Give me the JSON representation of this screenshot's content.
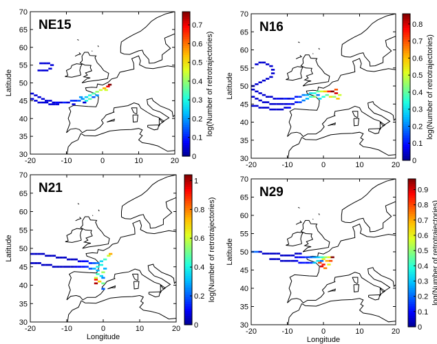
{
  "colormap": [
    "#00008f",
    "#0000ff",
    "#0060ff",
    "#00c0ff",
    "#20ffe0",
    "#80ff80",
    "#e0ff20",
    "#ffc000",
    "#ff6000",
    "#ff0000",
    "#800000"
  ],
  "coast_color": "#000000",
  "chart_data": [
    {
      "type": "heatmap",
      "title": "NE15",
      "xlabel": "",
      "ylabel": "Latitude",
      "colorbar_label": "log(Number of retrotrajectories)",
      "xlim": [
        -20,
        20
      ],
      "ylim": [
        30,
        70
      ],
      "xticks": [
        -20,
        -10,
        0,
        10,
        20
      ],
      "yticks": [
        30,
        35,
        40,
        45,
        50,
        55,
        60,
        65,
        70
      ],
      "clim": [
        0,
        0.77
      ],
      "cticks": [
        0,
        0.1,
        0.2,
        0.3,
        0.4,
        0.5,
        0.6,
        0.7
      ],
      "cells": [
        [
          -17,
          55.5,
          0.05
        ],
        [
          -16,
          55.5,
          0.05
        ],
        [
          -15,
          55.5,
          0.05
        ],
        [
          -14,
          55,
          0.05
        ],
        [
          -14.5,
          54,
          0.05
        ],
        [
          -15.5,
          53.5,
          0.05
        ],
        [
          -16.5,
          53.5,
          0.05
        ],
        [
          -17.5,
          53.5,
          0.05
        ],
        [
          -19.5,
          47,
          0.05
        ],
        [
          -18.5,
          46.5,
          0.05
        ],
        [
          -17.5,
          46,
          0.05
        ],
        [
          -16.5,
          45.5,
          0.05
        ],
        [
          -15.5,
          45,
          0.05
        ],
        [
          -14.5,
          45,
          0.05
        ],
        [
          -13.5,
          44.5,
          0.05
        ],
        [
          -12.5,
          44.5,
          0.08
        ],
        [
          -11.5,
          44.5,
          0.05
        ],
        [
          -10.5,
          44.5,
          0.1
        ],
        [
          -9.5,
          44.5,
          0.05
        ],
        [
          -8.5,
          45,
          0.12
        ],
        [
          -7.5,
          45,
          0.1
        ],
        [
          -6.5,
          45,
          0.15
        ],
        [
          -5.5,
          45.5,
          0.2
        ],
        [
          -4.5,
          46,
          0.25
        ],
        [
          -3.5,
          46.5,
          0.3
        ],
        [
          -2.5,
          47,
          0.35
        ],
        [
          -1.5,
          47.5,
          0.4
        ],
        [
          -0.5,
          48,
          0.45
        ],
        [
          0.5,
          48.5,
          0.55
        ],
        [
          1.5,
          49,
          0.7
        ],
        [
          2,
          49.5,
          0.77
        ],
        [
          -19.5,
          45.5,
          0.05
        ],
        [
          -18.5,
          45,
          0.05
        ],
        [
          -17.5,
          44.5,
          0.05
        ],
        [
          -16.5,
          44.5,
          0.05
        ],
        [
          -15.5,
          44.5,
          0.05
        ],
        [
          -14.5,
          44,
          0.05
        ],
        [
          -13.5,
          44,
          0.05
        ],
        [
          -12.5,
          44,
          0.05
        ],
        [
          -4.5,
          45,
          0.3
        ],
        [
          -3.5,
          45.5,
          0.35
        ],
        [
          -2.5,
          46,
          0.15
        ],
        [
          -1.5,
          46.5,
          0.2
        ],
        [
          1,
          48,
          0.45
        ],
        [
          -6,
          46,
          0.2
        ],
        [
          -8,
          44,
          0.05
        ],
        [
          -5,
          44.5,
          0.05
        ]
      ]
    },
    {
      "type": "heatmap",
      "title": "N16",
      "xlabel": "",
      "ylabel": "Latitude",
      "colorbar_label": "log(Number of retrotrajectories)",
      "xlim": [
        -20,
        20
      ],
      "ylim": [
        30,
        70
      ],
      "xticks": [
        -20,
        -10,
        0,
        10,
        20
      ],
      "yticks": [
        30,
        35,
        40,
        45,
        50,
        55,
        60,
        65,
        70
      ],
      "clim": [
        0,
        0.86
      ],
      "cticks": [
        0,
        0.1,
        0.2,
        0.3,
        0.4,
        0.5,
        0.6,
        0.7,
        0.8
      ],
      "cells": [
        [
          -18.5,
          56,
          0.05
        ],
        [
          -17.5,
          56.5,
          0.05
        ],
        [
          -16.5,
          56.5,
          0.05
        ],
        [
          -15.5,
          56,
          0.05
        ],
        [
          -14.5,
          55.5,
          0.05
        ],
        [
          -14,
          54.5,
          0.05
        ],
        [
          -14,
          53.5,
          0.05
        ],
        [
          -14.5,
          52.5,
          0.05
        ],
        [
          -15.5,
          52,
          0.05
        ],
        [
          -16.5,
          51.5,
          0.05
        ],
        [
          -17.5,
          51,
          0.05
        ],
        [
          -18.5,
          50.5,
          0.05
        ],
        [
          -19.5,
          50,
          0.05
        ],
        [
          -19.5,
          49,
          0.05
        ],
        [
          -18.5,
          48.5,
          0.05
        ],
        [
          -17.5,
          48,
          0.05
        ],
        [
          -16.5,
          47.5,
          0.05
        ],
        [
          -15.5,
          47,
          0.05
        ],
        [
          -14.5,
          47,
          0.05
        ],
        [
          -13.5,
          46.5,
          0.05
        ],
        [
          -12.5,
          46.5,
          0.08
        ],
        [
          -11.5,
          46.5,
          0.05
        ],
        [
          -10.5,
          46.5,
          0.1
        ],
        [
          -9.5,
          46.5,
          0.05
        ],
        [
          -8.5,
          46.5,
          0.12
        ],
        [
          -7.5,
          47,
          0.1
        ],
        [
          -6.5,
          47,
          0.15
        ],
        [
          -5.5,
          47.5,
          0.2
        ],
        [
          -4.5,
          47.5,
          0.25
        ],
        [
          -3.5,
          48,
          0.3
        ],
        [
          -2.5,
          48,
          0.35
        ],
        [
          -1.5,
          48.5,
          0.4
        ],
        [
          -0.5,
          48.5,
          0.5
        ],
        [
          0.5,
          48.5,
          0.6
        ],
        [
          1.5,
          48.5,
          0.75
        ],
        [
          2.5,
          48.5,
          0.86
        ],
        [
          3.5,
          48,
          0.8
        ],
        [
          -19.5,
          47,
          0.05
        ],
        [
          -18.5,
          46.5,
          0.05
        ],
        [
          -17.5,
          46,
          0.05
        ],
        [
          -16.5,
          45.5,
          0.05
        ],
        [
          -15.5,
          45.5,
          0.05
        ],
        [
          -14.5,
          45,
          0.05
        ],
        [
          -13.5,
          45,
          0.05
        ],
        [
          -12.5,
          45,
          0.05
        ],
        [
          -11.5,
          45,
          0.05
        ],
        [
          -10.5,
          45,
          0.05
        ],
        [
          -9.5,
          45,
          0.08
        ],
        [
          -8.5,
          45,
          0.05
        ],
        [
          -7.5,
          45.5,
          0.1
        ],
        [
          -6.5,
          45.5,
          0.15
        ],
        [
          -5.5,
          46,
          0.2
        ],
        [
          -4.5,
          46.5,
          0.25
        ],
        [
          -3.5,
          47,
          0.35
        ],
        [
          -2.5,
          47,
          0.45
        ],
        [
          -1.5,
          47.5,
          0.2
        ],
        [
          -19.5,
          44.5,
          0.05
        ],
        [
          -18.5,
          44.5,
          0.05
        ],
        [
          -17.5,
          44,
          0.05
        ],
        [
          -16.5,
          44,
          0.05
        ],
        [
          -15.5,
          44,
          0.05
        ],
        [
          -14.5,
          43.5,
          0.05
        ],
        [
          -13.5,
          43.5,
          0.05
        ],
        [
          -12.5,
          43.5,
          0.05
        ],
        [
          -11.5,
          43.5,
          0.05
        ],
        [
          -10.5,
          44,
          0.05
        ],
        [
          -9.5,
          44,
          0.08
        ],
        [
          -1,
          46.5,
          0.3
        ],
        [
          0,
          47,
          0.35
        ],
        [
          1,
          47.5,
          0.4
        ],
        [
          2,
          47,
          0.55
        ],
        [
          3,
          47,
          0.45
        ],
        [
          4,
          46.5,
          0.6
        ],
        [
          4.5,
          47.5,
          0.5
        ],
        [
          3.5,
          49,
          0.7
        ]
      ]
    },
    {
      "type": "heatmap",
      "title": "N21",
      "xlabel": "Longitude",
      "ylabel": "Latitude",
      "colorbar_label": "log(Number of retrotrajectories)",
      "xlim": [
        -20,
        20
      ],
      "ylim": [
        30,
        70
      ],
      "xticks": [
        -20,
        -10,
        0,
        10,
        20
      ],
      "yticks": [
        30,
        35,
        40,
        45,
        50,
        55,
        60,
        65,
        70
      ],
      "clim": [
        0,
        1.04
      ],
      "cticks": [
        0,
        0.2,
        0.4,
        0.6,
        0.8,
        1
      ],
      "cells": [
        [
          -19.5,
          48.5,
          0.05
        ],
        [
          -18.5,
          48.5,
          0.05
        ],
        [
          -17.5,
          48.5,
          0.05
        ],
        [
          -16.5,
          48.5,
          0.05
        ],
        [
          -15.5,
          48,
          0.05
        ],
        [
          -14.5,
          48,
          0.05
        ],
        [
          -13.5,
          48,
          0.05
        ],
        [
          -12.5,
          47.5,
          0.05
        ],
        [
          -11.5,
          47.5,
          0.05
        ],
        [
          -10.5,
          47.5,
          0.05
        ],
        [
          -9.5,
          47,
          0.05
        ],
        [
          -8.5,
          47,
          0.05
        ],
        [
          -7.5,
          47,
          0.05
        ],
        [
          -6.5,
          46.5,
          0.08
        ],
        [
          -5.5,
          46.5,
          0.1
        ],
        [
          -4.5,
          46.5,
          0.12
        ],
        [
          -3.5,
          46,
          0.15
        ],
        [
          -2.5,
          46,
          0.2
        ],
        [
          -1.5,
          46,
          0.25
        ],
        [
          -0.5,
          46.5,
          0.35
        ],
        [
          0.5,
          47,
          0.45
        ],
        [
          1.5,
          48,
          0.6
        ],
        [
          2,
          48.5,
          0.75
        ],
        [
          -19.5,
          46,
          0.05
        ],
        [
          -18.5,
          46,
          0.05
        ],
        [
          -17.5,
          46,
          0.05
        ],
        [
          -16.5,
          45.5,
          0.05
        ],
        [
          -15.5,
          45.5,
          0.05
        ],
        [
          -14.5,
          45.5,
          0.05
        ],
        [
          -13.5,
          45,
          0.05
        ],
        [
          -12.5,
          45,
          0.05
        ],
        [
          -11.5,
          45,
          0.05
        ],
        [
          -10.5,
          45,
          0.05
        ],
        [
          -9.5,
          45,
          0.05
        ],
        [
          -8.5,
          45,
          0.05
        ],
        [
          -7.5,
          45,
          0.08
        ],
        [
          -6.5,
          45,
          0.1
        ],
        [
          -5.5,
          45,
          0.12
        ],
        [
          -4.5,
          45,
          0.15
        ],
        [
          -3.5,
          44.5,
          0.2
        ],
        [
          -2.5,
          44.5,
          0.3
        ],
        [
          -1.5,
          45,
          0.4
        ],
        [
          -1.5,
          44,
          0.3
        ],
        [
          -1.5,
          43,
          0.45
        ],
        [
          -2,
          42,
          0.6
        ],
        [
          -2,
          41.5,
          0.9
        ],
        [
          -2,
          40.5,
          1.0
        ],
        [
          -1,
          41,
          0.7
        ],
        [
          0,
          40.5,
          0.5
        ],
        [
          -0.5,
          42.5,
          0.35
        ],
        [
          0,
          43.5,
          0.55
        ],
        [
          0.5,
          44.5,
          0.3
        ],
        [
          0,
          42,
          0.25
        ],
        [
          0,
          39,
          0.2
        ],
        [
          -0.5,
          45.5,
          0.4
        ]
      ]
    },
    {
      "type": "heatmap",
      "title": "N29",
      "xlabel": "Longitude",
      "ylabel": "Latitude",
      "colorbar_label": "log(Number of retrotrajectories)",
      "xlim": [
        -20,
        20
      ],
      "ylim": [
        30,
        70
      ],
      "xticks": [
        -20,
        -10,
        0,
        10,
        20
      ],
      "yticks": [
        30,
        35,
        40,
        45,
        50,
        55,
        60,
        65,
        70
      ],
      "clim": [
        0,
        0.97
      ],
      "cticks": [
        0,
        0.1,
        0.2,
        0.3,
        0.4,
        0.5,
        0.6,
        0.7,
        0.8,
        0.9
      ],
      "cells": [
        [
          -19.5,
          50,
          0.2
        ],
        [
          -18.5,
          50,
          0.2
        ],
        [
          -17.5,
          50,
          0.05
        ],
        [
          -16.5,
          49.5,
          0.05
        ],
        [
          -15.5,
          49.5,
          0.05
        ],
        [
          -14.5,
          49.5,
          0.05
        ],
        [
          -13.5,
          49.5,
          0.05
        ],
        [
          -12.5,
          49.5,
          0.05
        ],
        [
          -11.5,
          49,
          0.05
        ],
        [
          -10.5,
          49,
          0.05
        ],
        [
          -9.5,
          49,
          0.05
        ],
        [
          -8.5,
          49,
          0.05
        ],
        [
          -7.5,
          48.5,
          0.08
        ],
        [
          -6.5,
          48.5,
          0.1
        ],
        [
          -5.5,
          48.5,
          0.12
        ],
        [
          -4.5,
          48.5,
          0.15
        ],
        [
          -3.5,
          48.5,
          0.2
        ],
        [
          -2.5,
          48.5,
          0.25
        ],
        [
          -1.5,
          48.5,
          0.3
        ],
        [
          -0.5,
          48.5,
          0.4
        ],
        [
          0.5,
          48.5,
          0.5
        ],
        [
          1.5,
          48.5,
          0.6
        ],
        [
          2.5,
          48.5,
          0.97
        ],
        [
          -14.5,
          48,
          0.05
        ],
        [
          -13.5,
          48,
          0.05
        ],
        [
          -12.5,
          48,
          0.05
        ],
        [
          -11.5,
          47.5,
          0.05
        ],
        [
          -10.5,
          47.5,
          0.05
        ],
        [
          -9.5,
          47.5,
          0.05
        ],
        [
          -8.5,
          47.5,
          0.05
        ],
        [
          -7.5,
          47.5,
          0.08
        ],
        [
          -6.5,
          47,
          0.1
        ],
        [
          -5.5,
          47,
          0.12
        ],
        [
          -4.5,
          47,
          0.1
        ],
        [
          -3.5,
          47,
          0.15
        ],
        [
          -2.5,
          47,
          0.3
        ],
        [
          -1.5,
          47.5,
          0.35
        ],
        [
          -0.5,
          47.5,
          0.2
        ],
        [
          0,
          46.5,
          0.85
        ],
        [
          -0.5,
          46,
          0.9
        ],
        [
          0.5,
          45.5,
          0.75
        ],
        [
          -1,
          47,
          0.8
        ],
        [
          1,
          47.5,
          0.7
        ],
        [
          1.5,
          46.5,
          0.6
        ],
        [
          2,
          47.5,
          0.8
        ],
        [
          -7.5,
          49.5,
          0.05
        ],
        [
          -6.5,
          49.5,
          0.05
        ],
        [
          0,
          48,
          0.6
        ]
      ]
    }
  ]
}
